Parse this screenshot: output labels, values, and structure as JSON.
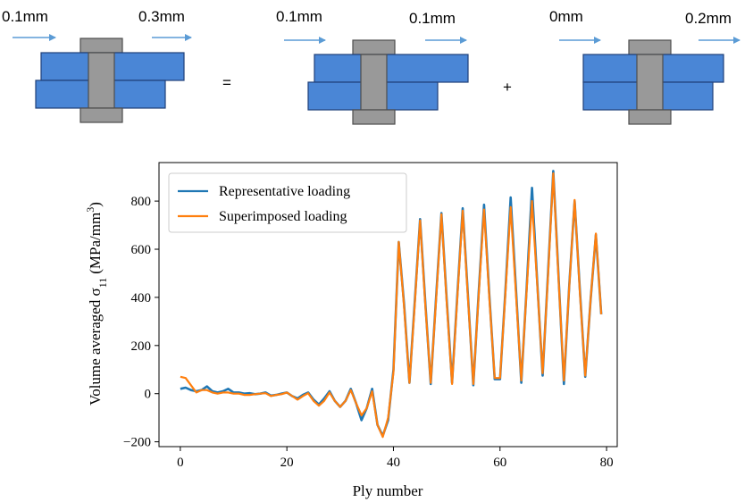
{
  "diagram": {
    "panels": [
      {
        "left_disp": "0.1mm",
        "right_disp": "0.3mm",
        "offset": "shifted"
      },
      {
        "left_disp": "0.1mm",
        "right_disp": "0.1mm",
        "offset": "shifted"
      },
      {
        "left_disp": "0mm",
        "right_disp": "0.2mm",
        "offset": "aligned"
      }
    ],
    "operators": [
      "=",
      "+"
    ],
    "arrow_color": "#5b9bd5",
    "plate_color": "#4a86d6",
    "bolt_color": "#999999"
  },
  "chart_data": {
    "type": "line",
    "xlabel": "Ply number",
    "ylabel_main": "Volume averaged σ",
    "ylabel_sub": "11",
    "ylabel_unit": "(MPa/mm",
    "ylabel_sup": "3",
    "ylabel_close": ")",
    "xlim": [
      -4,
      82
    ],
    "ylim": [
      -220,
      960
    ],
    "xticks": [
      0,
      20,
      40,
      60,
      80
    ],
    "yticks": [
      -200,
      0,
      200,
      400,
      600,
      800
    ],
    "grid": false,
    "legend_position": "top-left",
    "series": [
      {
        "name": "Representative loading",
        "color": "#1f77b4",
        "x": [
          0,
          1,
          2,
          3,
          4,
          5,
          6,
          7,
          8,
          9,
          10,
          11,
          12,
          13,
          14,
          15,
          16,
          17,
          18,
          19,
          20,
          21,
          22,
          23,
          24,
          25,
          26,
          27,
          28,
          29,
          30,
          31,
          32,
          33,
          34,
          35,
          36,
          37,
          38,
          39,
          40,
          41,
          42,
          43,
          44,
          45,
          46,
          47,
          48,
          49,
          50,
          51,
          52,
          53,
          54,
          55,
          56,
          57,
          58,
          59,
          60,
          61,
          62,
          63,
          64,
          65,
          66,
          67,
          68,
          69,
          70,
          71,
          72,
          73,
          74,
          75,
          76,
          77,
          78,
          79
        ],
        "values": [
          20,
          25,
          15,
          10,
          15,
          30,
          10,
          5,
          10,
          20,
          5,
          5,
          0,
          2,
          -2,
          0,
          5,
          -8,
          -5,
          0,
          5,
          -10,
          -20,
          -5,
          5,
          -25,
          -45,
          -20,
          10,
          -30,
          -55,
          -30,
          20,
          -40,
          -110,
          -60,
          20,
          -130,
          -175,
          -110,
          100,
          630,
          370,
          45,
          380,
          725,
          370,
          40,
          400,
          750,
          390,
          45,
          410,
          770,
          400,
          35,
          420,
          785,
          410,
          60,
          60,
          420,
          815,
          430,
          45,
          440,
          855,
          460,
          75,
          500,
          925,
          480,
          40,
          450,
          800,
          430,
          70,
          390,
          660,
          330
        ]
      },
      {
        "name": "Superimposed loading",
        "color": "#ff7f0e",
        "x": [
          0,
          1,
          2,
          3,
          4,
          5,
          6,
          7,
          8,
          9,
          10,
          11,
          12,
          13,
          14,
          15,
          16,
          17,
          18,
          19,
          20,
          21,
          22,
          23,
          24,
          25,
          26,
          27,
          28,
          29,
          30,
          31,
          32,
          33,
          34,
          35,
          36,
          37,
          38,
          39,
          40,
          41,
          42,
          43,
          44,
          45,
          46,
          47,
          48,
          49,
          50,
          51,
          52,
          53,
          54,
          55,
          56,
          57,
          58,
          59,
          60,
          61,
          62,
          63,
          64,
          65,
          66,
          67,
          68,
          69,
          70,
          71,
          72,
          73,
          74,
          75,
          76,
          77,
          78,
          79
        ],
        "values": [
          70,
          65,
          35,
          5,
          15,
          15,
          5,
          0,
          5,
          5,
          0,
          0,
          -5,
          -5,
          -2,
          0,
          2,
          -10,
          -5,
          -2,
          5,
          -10,
          -25,
          -10,
          2,
          -30,
          -50,
          -30,
          5,
          -30,
          -55,
          -30,
          15,
          -40,
          -90,
          -60,
          10,
          -130,
          -180,
          -100,
          90,
          630,
          360,
          45,
          370,
          720,
          360,
          45,
          390,
          745,
          380,
          40,
          400,
          760,
          390,
          40,
          410,
          765,
          400,
          65,
          65,
          410,
          775,
          410,
          55,
          430,
          800,
          450,
          85,
          490,
          915,
          470,
          55,
          445,
          805,
          420,
          75,
          390,
          665,
          330
        ]
      }
    ]
  }
}
